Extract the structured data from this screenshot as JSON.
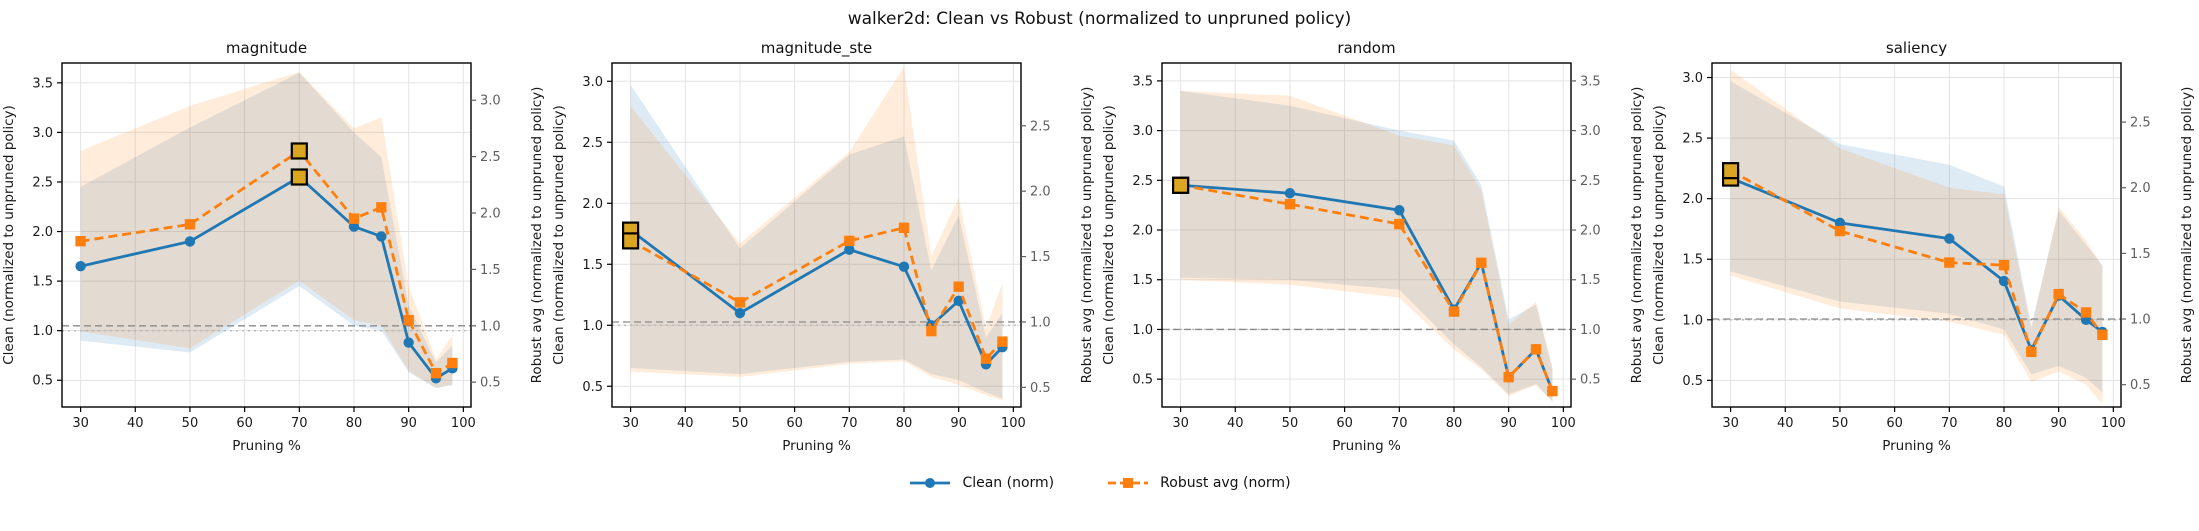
{
  "figure": {
    "title": "walker2d: Clean vs Robust (normalized to unpruned policy)"
  },
  "legend": {
    "items": [
      {
        "label": "Clean (norm)",
        "color": "#1f77b4",
        "marker": "circle",
        "line": "solid"
      },
      {
        "label": "Robust avg (norm)",
        "color": "#ff7f0e",
        "marker": "square",
        "line": "dashed"
      }
    ]
  },
  "style": {
    "clean_color": "#1f77b4",
    "robust_color": "#ff7f0e",
    "band_alpha": 0.15,
    "highlight_fill": "#DAA520",
    "highlight_edge": "#000000",
    "grid_color": "#e3e3e3",
    "frame_color": "#000000",
    "ref_dashed_color": "#8a8a8a",
    "ref_dotted_color": "#b5b5b5",
    "left_tick_color": "#1a1a1a",
    "right_tick_color": "#5f5f5f"
  },
  "chart_data": [
    {
      "type": "line",
      "title": "magnitude",
      "xlabel": "Pruning %",
      "ylabel_left": "Clean (normalized to unpruned policy)",
      "ylabel_right": "Robust avg (normalized to unpruned policy)",
      "x": [
        30,
        50,
        70,
        80,
        85,
        90,
        95,
        98
      ],
      "x_ticks": [
        30,
        40,
        50,
        60,
        70,
        80,
        90,
        100
      ],
      "x_range": [
        26.6,
        101.4
      ],
      "left_axis": {
        "range": [
          0.23,
          3.7
        ],
        "ticks": [
          0.5,
          1.0,
          1.5,
          2.0,
          2.5,
          3.0,
          3.5
        ]
      },
      "right_axis": {
        "range": [
          0.28,
          3.33
        ],
        "ticks": [
          0.5,
          1.0,
          1.5,
          2.0,
          2.5,
          3.0
        ]
      },
      "series": [
        {
          "name": "Clean (norm)",
          "axis": "left",
          "color": "#1f77b4",
          "marker": "circle",
          "dash": "solid",
          "values": [
            1.65,
            1.9,
            2.55,
            2.05,
            1.95,
            0.88,
            0.52,
            0.62
          ],
          "band_lo": [
            0.9,
            0.78,
            1.45,
            1.05,
            1.0,
            0.58,
            0.42,
            0.45
          ],
          "band_hi": [
            2.45,
            3.05,
            3.6,
            3.0,
            2.75,
            1.25,
            0.68,
            0.85
          ]
        },
        {
          "name": "Robust avg (norm)",
          "axis": "right",
          "color": "#ff7f0e",
          "marker": "square",
          "dash": "dashed",
          "values": [
            1.75,
            1.9,
            2.55,
            1.95,
            2.05,
            1.05,
            0.58,
            0.67
          ],
          "band_lo": [
            0.95,
            0.8,
            1.4,
            1.05,
            1.0,
            0.6,
            0.45,
            0.48
          ],
          "band_hi": [
            2.55,
            2.95,
            3.25,
            2.75,
            2.85,
            1.35,
            0.7,
            0.92
          ]
        }
      ],
      "reference_lines": [
        {
          "axis": "left",
          "y": 1.0,
          "style": "dotted"
        },
        {
          "axis": "right",
          "y": 1.0,
          "style": "dashed"
        }
      ],
      "highlights": [
        {
          "series": "Clean (norm)",
          "x": 70
        },
        {
          "series": "Robust avg (norm)",
          "x": 70
        }
      ]
    },
    {
      "type": "line",
      "title": "magnitude_ste",
      "xlabel": "Pruning %",
      "ylabel_left": "Clean (normalized to unpruned policy)",
      "ylabel_right": "Robust avg (normalized to unpruned policy)",
      "x": [
        30,
        50,
        70,
        80,
        85,
        90,
        95,
        98
      ],
      "x_ticks": [
        30,
        40,
        50,
        60,
        70,
        80,
        90,
        100
      ],
      "x_range": [
        26.6,
        101.4
      ],
      "left_axis": {
        "range": [
          0.33,
          3.15
        ],
        "ticks": [
          0.5,
          1.0,
          1.5,
          2.0,
          2.5,
          3.0
        ]
      },
      "right_axis": {
        "range": [
          0.35,
          2.98
        ],
        "ticks": [
          0.5,
          1.0,
          1.5,
          2.0,
          2.5
        ]
      },
      "series": [
        {
          "name": "Clean (norm)",
          "axis": "left",
          "color": "#1f77b4",
          "marker": "circle",
          "dash": "solid",
          "values": [
            1.78,
            1.1,
            1.62,
            1.48,
            1.0,
            1.2,
            0.68,
            0.82
          ],
          "band_lo": [
            0.65,
            0.6,
            0.7,
            0.72,
            0.6,
            0.55,
            0.45,
            0.4
          ],
          "band_hi": [
            2.97,
            1.63,
            2.4,
            2.55,
            1.45,
            1.9,
            0.9,
            1.1
          ]
        },
        {
          "name": "Robust avg (norm)",
          "axis": "right",
          "color": "#ff7f0e",
          "marker": "square",
          "dash": "dashed",
          "values": [
            1.62,
            1.15,
            1.62,
            1.72,
            0.93,
            1.27,
            0.72,
            0.85
          ],
          "band_lo": [
            0.62,
            0.58,
            0.68,
            0.7,
            0.58,
            0.52,
            0.44,
            0.4
          ],
          "band_hi": [
            2.65,
            1.6,
            2.3,
            2.95,
            1.5,
            1.95,
            0.95,
            1.3
          ]
        }
      ],
      "reference_lines": [
        {
          "axis": "left",
          "y": 1.0,
          "style": "dotted"
        },
        {
          "axis": "right",
          "y": 1.0,
          "style": "dashed"
        }
      ],
      "highlights": [
        {
          "series": "Clean (norm)",
          "x": 30
        },
        {
          "series": "Robust avg (norm)",
          "x": 30
        }
      ]
    },
    {
      "type": "line",
      "title": "random",
      "xlabel": "Pruning %",
      "ylabel_left": "Clean (normalized to unpruned policy)",
      "ylabel_right": "Robust avg (normalized to unpruned policy)",
      "x": [
        30,
        50,
        70,
        80,
        85,
        90,
        95,
        98
      ],
      "x_ticks": [
        30,
        40,
        50,
        60,
        70,
        80,
        90,
        100
      ],
      "x_range": [
        26.6,
        101.4
      ],
      "left_axis": {
        "range": [
          0.22,
          3.68
        ],
        "ticks": [
          0.5,
          1.0,
          1.5,
          2.0,
          2.5,
          3.0,
          3.5
        ]
      },
      "right_axis": {
        "range": [
          0.22,
          3.68
        ],
        "ticks": [
          0.5,
          1.0,
          1.5,
          2.0,
          2.5,
          3.0,
          3.5
        ]
      },
      "series": [
        {
          "name": "Clean (norm)",
          "axis": "left",
          "color": "#1f77b4",
          "marker": "circle",
          "dash": "solid",
          "values": [
            2.45,
            2.37,
            2.2,
            1.2,
            1.67,
            0.52,
            0.8,
            0.38
          ],
          "band_lo": [
            1.52,
            1.5,
            1.4,
            0.85,
            0.62,
            0.35,
            0.45,
            0.28
          ],
          "band_hi": [
            3.4,
            3.25,
            3.0,
            2.9,
            2.45,
            1.1,
            1.25,
            0.6
          ]
        },
        {
          "name": "Robust avg (norm)",
          "axis": "right",
          "color": "#ff7f0e",
          "marker": "square",
          "dash": "dashed",
          "values": [
            2.45,
            2.26,
            2.06,
            1.18,
            1.67,
            0.52,
            0.8,
            0.38
          ],
          "band_lo": [
            1.5,
            1.45,
            1.32,
            0.8,
            0.6,
            0.33,
            0.44,
            0.27
          ],
          "band_hi": [
            3.4,
            3.35,
            2.95,
            2.85,
            2.4,
            1.05,
            1.28,
            0.62
          ]
        }
      ],
      "reference_lines": [
        {
          "axis": "left",
          "y": 1.0,
          "style": "dotted"
        },
        {
          "axis": "right",
          "y": 1.0,
          "style": "dashed"
        }
      ],
      "highlights": [
        {
          "series": "Clean (norm)",
          "x": 30
        },
        {
          "series": "Robust avg (norm)",
          "x": 30
        }
      ]
    },
    {
      "type": "line",
      "title": "saliency",
      "xlabel": "Pruning %",
      "ylabel_left": "Clean (normalized to unpruned policy)",
      "ylabel_right": "Robust avg (normalized to unpruned policy)",
      "x": [
        30,
        50,
        70,
        80,
        85,
        90,
        95,
        98
      ],
      "x_ticks": [
        30,
        40,
        50,
        60,
        70,
        80,
        90,
        100
      ],
      "x_range": [
        26.6,
        101.4
      ],
      "left_axis": {
        "range": [
          0.28,
          3.12
        ],
        "ticks": [
          0.5,
          1.0,
          1.5,
          2.0,
          2.5,
          3.0
        ]
      },
      "right_axis": {
        "range": [
          0.33,
          2.95
        ],
        "ticks": [
          0.5,
          1.0,
          1.5,
          2.0,
          2.5
        ]
      },
      "series": [
        {
          "name": "Clean (norm)",
          "axis": "left",
          "color": "#1f77b4",
          "marker": "circle",
          "dash": "solid",
          "values": [
            2.17,
            1.8,
            1.67,
            1.32,
            0.75,
            1.2,
            1.0,
            0.9
          ],
          "band_lo": [
            1.4,
            1.15,
            1.05,
            0.92,
            0.55,
            0.62,
            0.52,
            0.4
          ],
          "band_hi": [
            2.97,
            2.45,
            2.28,
            2.1,
            0.95,
            1.9,
            1.62,
            1.45
          ]
        },
        {
          "name": "Robust avg (norm)",
          "axis": "right",
          "color": "#ff7f0e",
          "marker": "square",
          "dash": "dashed",
          "values": [
            2.13,
            1.67,
            1.43,
            1.41,
            0.75,
            1.19,
            1.05,
            0.88
          ],
          "band_lo": [
            1.33,
            1.08,
            0.98,
            0.88,
            0.52,
            0.6,
            0.5,
            0.35
          ],
          "band_hi": [
            2.9,
            2.3,
            2.0,
            1.95,
            0.92,
            1.85,
            1.6,
            1.4
          ]
        }
      ],
      "reference_lines": [
        {
          "axis": "left",
          "y": 1.0,
          "style": "dotted"
        },
        {
          "axis": "right",
          "y": 1.0,
          "style": "dashed"
        }
      ],
      "highlights": [
        {
          "series": "Clean (norm)",
          "x": 30
        },
        {
          "series": "Robust avg (norm)",
          "x": 30
        }
      ]
    }
  ]
}
